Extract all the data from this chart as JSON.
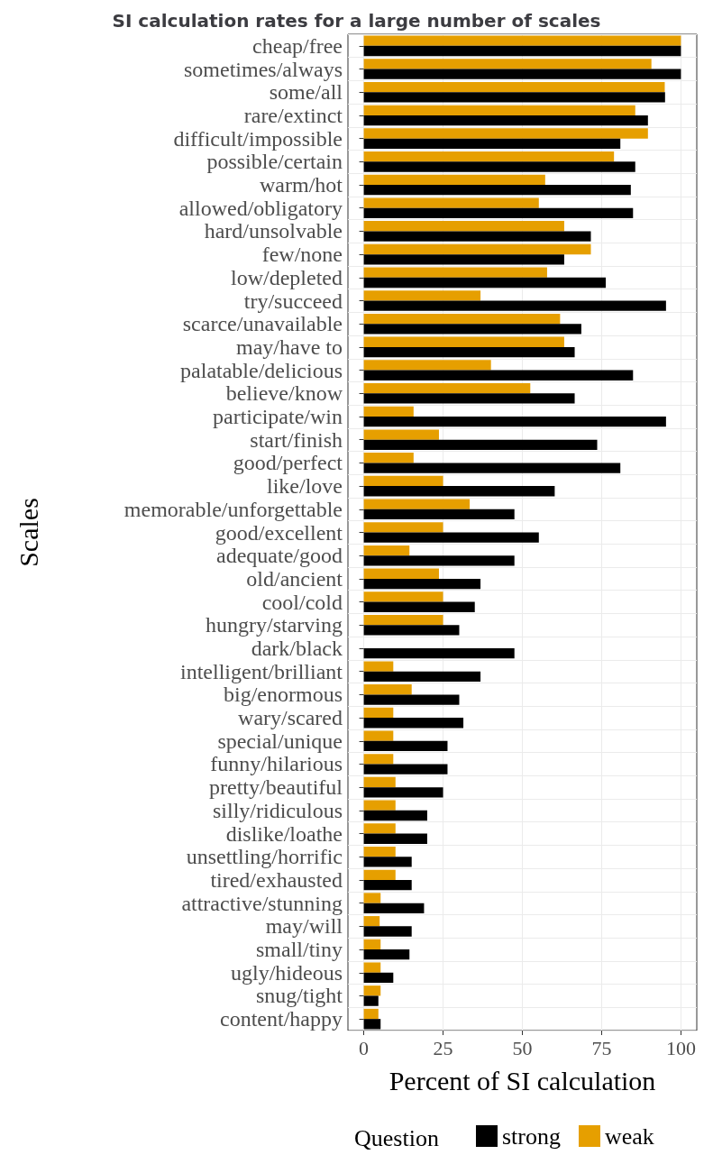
{
  "chart_data": {
    "type": "bar",
    "orientation": "horizontal",
    "title": "SI calculation rates for a large number of scales",
    "xlabel": "Percent of SI calculation",
    "ylabel": "Scales",
    "legend_title": "Question",
    "legend": "bottom",
    "grid": true,
    "categories": [
      "cheap/free",
      "sometimes/always",
      "some/all",
      "rare/extinct",
      "difficult/impossible",
      "possible/certain",
      "warm/hot",
      "allowed/obligatory",
      "hard/unsolvable",
      "few/none",
      "low/depleted",
      "try/succeed",
      "scarce/unavailable",
      "may/have to",
      "palatable/delicious",
      "believe/know",
      "participate/win",
      "start/finish",
      "good/perfect",
      "like/love",
      "memorable/unforgettable",
      "good/excellent",
      "adequate/good",
      "old/ancient",
      "cool/cold",
      "hungry/starving",
      "dark/black",
      "intelligent/brilliant",
      "big/enormous",
      "wary/scared",
      "special/unique",
      "funny/hilarious",
      "pretty/beautiful",
      "silly/ridiculous",
      "dislike/loathe",
      "unsettling/horrific",
      "tired/exhausted",
      "attractive/stunning",
      "may/will",
      "small/tiny",
      "ugly/hideous",
      "snug/tight",
      "content/happy"
    ],
    "xlim": [
      -5,
      105
    ],
    "xticks": [
      0,
      25,
      50,
      75,
      100
    ],
    "series": [
      {
        "name": "strong",
        "color": "#000000",
        "values": [
          100,
          100,
          95,
          89.6,
          80.9,
          85.6,
          84.2,
          84.9,
          71.6,
          63.2,
          76.3,
          95.3,
          68.6,
          66.5,
          84.9,
          66.5,
          95.3,
          73.6,
          80.9,
          60.2,
          47.5,
          55.2,
          47.5,
          36.8,
          35,
          30.1,
          47.5,
          36.8,
          30.1,
          31.4,
          26.4,
          26.4,
          25,
          20,
          20,
          15.1,
          15.1,
          19,
          15.1,
          14.4,
          9.3,
          4.6,
          5.3
        ]
      },
      {
        "name": "weak",
        "color": "#e69f00",
        "values": [
          100,
          90.7,
          94.9,
          85.6,
          89.6,
          78.9,
          57.2,
          55.2,
          63.2,
          71.6,
          57.8,
          36.8,
          61.9,
          63.2,
          40.1,
          52.5,
          15.7,
          23.7,
          15.7,
          25,
          33.4,
          25,
          14.4,
          23.7,
          25,
          25,
          null,
          9.3,
          15.1,
          9.3,
          9.3,
          9.3,
          10,
          10,
          10,
          10,
          10,
          5.3,
          5,
          5.3,
          5.3,
          5.3,
          4.6
        ]
      }
    ]
  }
}
